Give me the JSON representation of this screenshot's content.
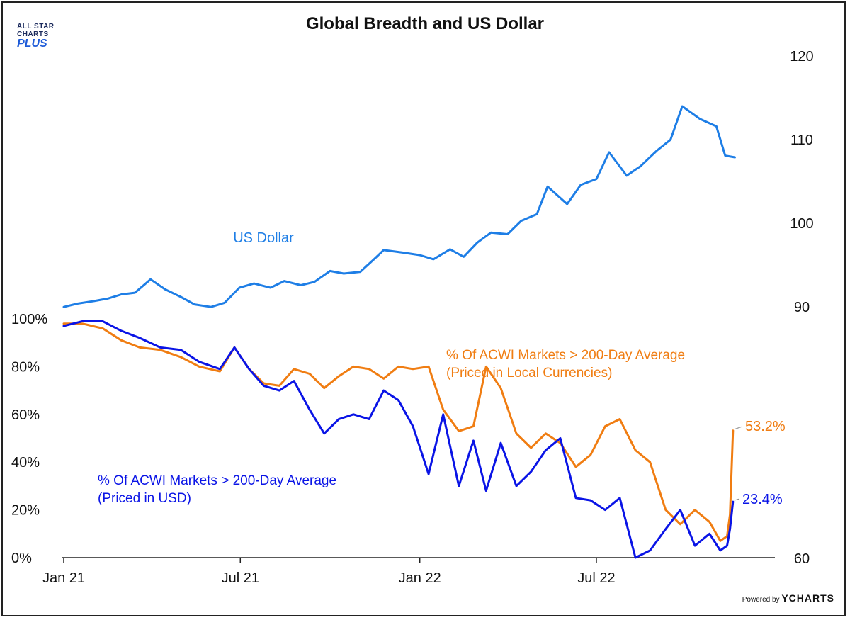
{
  "title": "Global Breadth and US Dollar",
  "logo": {
    "line1": "ALL STAR",
    "line2": "CHARTS",
    "line3": "PLUS"
  },
  "footer": {
    "powered_by": "Powered by",
    "brand": "YCHARTS"
  },
  "colors": {
    "usd": "#1e7ee6",
    "local": "#f07d12",
    "usd_breadth": "#0a14e6"
  },
  "chart_data": [
    {
      "type": "line",
      "title": "Global Breadth and US Dollar",
      "x_tick_labels": [
        "Jan 21",
        "Jul 21",
        "Jan 22",
        "Jul 22"
      ],
      "x_ticks": [
        "2021-01-01",
        "2021-07-01",
        "2022-01-01",
        "2022-07-01"
      ],
      "xlim": [
        "2021-01-01",
        "2022-12-31"
      ],
      "y_left_ticks": [
        "0%",
        "20%",
        "40%",
        "60%",
        "80%",
        "100%"
      ],
      "ylim_left": [
        0,
        100
      ],
      "y_right_ticks": [
        "60",
        "90",
        "100",
        "110",
        "120"
      ],
      "ylim_right": [
        60,
        120
      ],
      "grid": false,
      "annotations": [
        {
          "text": "US Dollar",
          "series": "US Dollar"
        },
        {
          "text": "% Of ACWI Markets > 200-Day Average",
          "text2": "(Priced in Local Currencies)",
          "series": "local"
        },
        {
          "text": "% Of ACWI Markets > 200-Day Average",
          "text2": "(Priced in USD)",
          "series": "usd_breadth"
        },
        {
          "text": "53.2%",
          "series": "local"
        },
        {
          "text": "23.4%",
          "series": "usd_breadth"
        }
      ],
      "series": [
        {
          "name": "US Dollar",
          "axis": "right",
          "x": [
            "2021-01-01",
            "2021-01-15",
            "2021-02-01",
            "2021-02-15",
            "2021-03-01",
            "2021-03-15",
            "2021-03-31",
            "2021-04-15",
            "2021-05-01",
            "2021-05-15",
            "2021-06-01",
            "2021-06-15",
            "2021-06-30",
            "2021-07-15",
            "2021-08-01",
            "2021-08-15",
            "2021-09-01",
            "2021-09-15",
            "2021-10-01",
            "2021-10-15",
            "2021-11-01",
            "2021-11-15",
            "2021-11-25",
            "2021-12-15",
            "2022-01-01",
            "2022-01-15",
            "2022-02-01",
            "2022-02-15",
            "2022-03-01",
            "2022-03-15",
            "2022-04-01",
            "2022-04-15",
            "2022-05-01",
            "2022-05-12",
            "2022-06-01",
            "2022-06-15",
            "2022-07-01",
            "2022-07-14",
            "2022-08-01",
            "2022-08-15",
            "2022-09-01",
            "2022-09-15",
            "2022-09-27",
            "2022-10-15",
            "2022-11-01",
            "2022-11-10",
            "2022-11-20"
          ],
          "values": [
            89.9,
            90.3,
            90.6,
            90.9,
            91.4,
            91.6,
            93.2,
            92.0,
            91.1,
            90.2,
            89.9,
            90.4,
            92.2,
            92.7,
            92.2,
            93.0,
            92.5,
            92.9,
            94.2,
            93.9,
            94.1,
            95.6,
            96.7,
            96.4,
            96.1,
            95.6,
            96.8,
            95.9,
            97.6,
            98.8,
            98.6,
            100.2,
            101.0,
            104.3,
            102.2,
            104.5,
            105.2,
            108.4,
            105.6,
            106.7,
            108.6,
            109.9,
            113.9,
            112.4,
            111.5,
            108.0,
            107.8
          ]
        },
        {
          "name": "local",
          "axis": "left",
          "x": [
            "2021-01-01",
            "2021-01-20",
            "2021-02-10",
            "2021-03-01",
            "2021-03-20",
            "2021-04-10",
            "2021-05-01",
            "2021-05-20",
            "2021-06-10",
            "2021-06-25",
            "2021-07-10",
            "2021-07-25",
            "2021-08-10",
            "2021-08-25",
            "2021-09-10",
            "2021-09-25",
            "2021-10-10",
            "2021-10-25",
            "2021-11-10",
            "2021-11-25",
            "2021-12-10",
            "2021-12-25",
            "2022-01-10",
            "2022-01-25",
            "2022-02-10",
            "2022-02-25",
            "2022-03-10",
            "2022-03-25",
            "2022-04-10",
            "2022-04-25",
            "2022-05-10",
            "2022-05-25",
            "2022-06-10",
            "2022-06-25",
            "2022-07-10",
            "2022-07-25",
            "2022-08-10",
            "2022-08-25",
            "2022-09-10",
            "2022-09-25",
            "2022-10-10",
            "2022-10-25",
            "2022-11-05",
            "2022-11-12",
            "2022-11-15",
            "2022-11-18"
          ],
          "values": [
            98,
            98,
            96,
            91,
            88,
            87,
            84,
            80,
            78,
            88,
            79,
            73,
            72,
            79,
            77,
            71,
            76,
            80,
            79,
            75,
            80,
            79,
            80,
            62,
            53,
            55,
            80,
            71,
            52,
            46,
            52,
            48,
            38,
            43,
            55,
            58,
            45,
            40,
            20,
            14,
            20,
            15,
            7,
            9,
            18,
            53.2
          ]
        },
        {
          "name": "usd_breadth",
          "axis": "left",
          "x": [
            "2021-01-01",
            "2021-01-20",
            "2021-02-10",
            "2021-03-01",
            "2021-03-20",
            "2021-04-10",
            "2021-05-01",
            "2021-05-20",
            "2021-06-10",
            "2021-06-25",
            "2021-07-10",
            "2021-07-25",
            "2021-08-10",
            "2021-08-25",
            "2021-09-10",
            "2021-09-25",
            "2021-10-10",
            "2021-10-25",
            "2021-11-10",
            "2021-11-25",
            "2021-12-10",
            "2021-12-25",
            "2022-01-10",
            "2022-01-25",
            "2022-02-10",
            "2022-02-25",
            "2022-03-10",
            "2022-03-25",
            "2022-04-10",
            "2022-04-25",
            "2022-05-10",
            "2022-05-25",
            "2022-06-10",
            "2022-06-25",
            "2022-07-10",
            "2022-07-25",
            "2022-08-10",
            "2022-08-25",
            "2022-09-10",
            "2022-09-25",
            "2022-10-10",
            "2022-10-25",
            "2022-11-05",
            "2022-11-12",
            "2022-11-15",
            "2022-11-18"
          ],
          "values": [
            97,
            99,
            99,
            95,
            92,
            88,
            87,
            82,
            79,
            88,
            79,
            72,
            70,
            74,
            62,
            52,
            58,
            60,
            58,
            70,
            66,
            55,
            35,
            60,
            30,
            49,
            28,
            48,
            30,
            36,
            45,
            50,
            25,
            24,
            20,
            25,
            0,
            3,
            12,
            20,
            5,
            10,
            3,
            5,
            12,
            23.4
          ]
        }
      ]
    }
  ]
}
